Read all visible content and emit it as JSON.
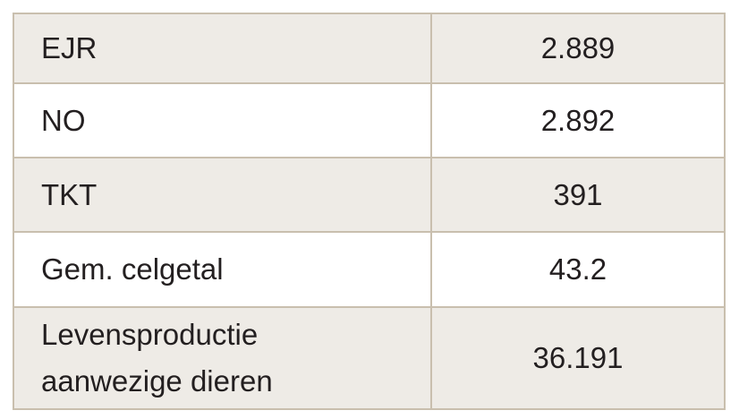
{
  "table": {
    "rows": [
      {
        "label": "EJR",
        "value": "2.889"
      },
      {
        "label": "NO",
        "value": "2.892"
      },
      {
        "label": "TKT",
        "value": "391"
      },
      {
        "label": "Gem. celgetal",
        "value": "43.2"
      },
      {
        "label_lines": [
          "Levensproductie",
          "aanwezige dieren"
        ],
        "value": "36.191"
      }
    ]
  }
}
